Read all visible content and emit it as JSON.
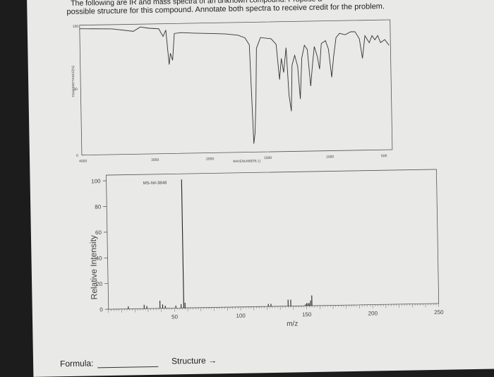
{
  "header": {
    "line1": "The following are IR and mass spectra of an unknown compound. Propose a",
    "line2": "possible structure for this compound. Annotate both spectra to receive credit for the problem."
  },
  "ir": {
    "y_label": "TRANSMITTANCE[%]",
    "x_label": "WAVENUMBER[-1]",
    "y_ticks": [
      "100",
      "50",
      "0"
    ],
    "x_ticks": [
      "4000",
      "3000",
      "2000",
      "1500",
      "1000",
      "500"
    ]
  },
  "chart_data": {
    "type": "bar",
    "title": "MS-IW-3848",
    "xlabel": "m/z",
    "ylabel": "Relative Intensity",
    "xlim": [
      0,
      250
    ],
    "ylim": [
      0,
      100
    ],
    "x_ticks": [
      50,
      100,
      150,
      200,
      250
    ],
    "y_ticks": [
      0,
      20,
      40,
      60,
      80,
      100
    ],
    "peaks": [
      {
        "mz": 15,
        "intensity": 2
      },
      {
        "mz": 27,
        "intensity": 3
      },
      {
        "mz": 29,
        "intensity": 2
      },
      {
        "mz": 39,
        "intensity": 6
      },
      {
        "mz": 41,
        "intensity": 3
      },
      {
        "mz": 43,
        "intensity": 2
      },
      {
        "mz": 51,
        "intensity": 2
      },
      {
        "mz": 55,
        "intensity": 3
      },
      {
        "mz": 57,
        "intensity": 100
      },
      {
        "mz": 58,
        "intensity": 4
      },
      {
        "mz": 121,
        "intensity": 2
      },
      {
        "mz": 123,
        "intensity": 2
      },
      {
        "mz": 136,
        "intensity": 5
      },
      {
        "mz": 138,
        "intensity": 5
      },
      {
        "mz": 149,
        "intensity": 1
      },
      {
        "mz": 150,
        "intensity": 2
      },
      {
        "mz": 151,
        "intensity": 2
      },
      {
        "mz": 152,
        "intensity": 2
      },
      {
        "mz": 153,
        "intensity": 4
      },
      {
        "mz": 154,
        "intensity": 8
      }
    ]
  },
  "footer": {
    "formula_label": "Formula:",
    "structure_label": "Structure →"
  }
}
